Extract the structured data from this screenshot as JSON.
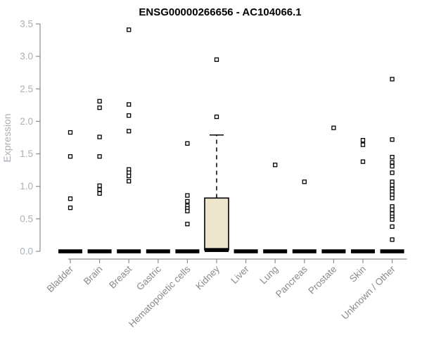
{
  "chart_data": {
    "type": "boxplot",
    "title": "ENSG00000266656 - AC104066.1",
    "ylabel": "Expression",
    "xlabel": "",
    "ylim": [
      0.0,
      3.5
    ],
    "yticks": [
      0.0,
      0.5,
      1.0,
      1.5,
      2.0,
      2.5,
      3.0,
      3.5
    ],
    "categories": [
      "Bladder",
      "Brain",
      "Breast",
      "Gastric",
      "Hematopoietic cells",
      "Kidney",
      "Liver",
      "Lung",
      "Pancreas",
      "Prostate",
      "Skin",
      "Unknown / Other"
    ],
    "boxes": [
      {
        "category": "Bladder",
        "median": 0.0,
        "q1": 0.0,
        "q3": 0.0,
        "whisker_low": 0.0,
        "whisker_high": 0.0,
        "outliers": [
          1.83,
          1.46,
          0.81,
          0.67
        ]
      },
      {
        "category": "Brain",
        "median": 0.0,
        "q1": 0.0,
        "q3": 0.0,
        "whisker_low": 0.0,
        "whisker_high": 0.0,
        "outliers": [
          2.31,
          2.21,
          1.76,
          1.46,
          1.01,
          0.95,
          0.89
        ]
      },
      {
        "category": "Breast",
        "median": 0.0,
        "q1": 0.0,
        "q3": 0.0,
        "whisker_low": 0.0,
        "whisker_high": 0.0,
        "outliers": [
          3.41,
          2.26,
          2.09,
          1.85,
          1.26,
          1.21,
          1.16,
          1.08
        ]
      },
      {
        "category": "Gastric",
        "median": 0.0,
        "q1": 0.0,
        "q3": 0.0,
        "whisker_low": 0.0,
        "whisker_high": 0.0,
        "outliers": []
      },
      {
        "category": "Hematopoietic cells",
        "median": 0.0,
        "q1": 0.0,
        "q3": 0.0,
        "whisker_low": 0.0,
        "whisker_high": 0.0,
        "outliers": [
          1.66,
          0.86,
          0.77,
          0.7,
          0.66,
          0.62,
          0.42
        ]
      },
      {
        "category": "Kidney",
        "median": 0.02,
        "q1": 0.02,
        "q3": 0.82,
        "whisker_low": 0.02,
        "whisker_high": 1.79,
        "outliers": [
          2.95,
          2.07
        ]
      },
      {
        "category": "Liver",
        "median": 0.0,
        "q1": 0.0,
        "q3": 0.0,
        "whisker_low": 0.0,
        "whisker_high": 0.0,
        "outliers": []
      },
      {
        "category": "Lung",
        "median": 0.0,
        "q1": 0.0,
        "q3": 0.0,
        "whisker_low": 0.0,
        "whisker_high": 0.0,
        "outliers": [
          1.33
        ]
      },
      {
        "category": "Pancreas",
        "median": 0.0,
        "q1": 0.0,
        "q3": 0.0,
        "whisker_low": 0.0,
        "whisker_high": 0.0,
        "outliers": [
          1.07
        ]
      },
      {
        "category": "Prostate",
        "median": 0.0,
        "q1": 0.0,
        "q3": 0.0,
        "whisker_low": 0.0,
        "whisker_high": 0.0,
        "outliers": [
          1.9
        ]
      },
      {
        "category": "Skin",
        "median": 0.0,
        "q1": 0.0,
        "q3": 0.0,
        "whisker_low": 0.0,
        "whisker_high": 0.0,
        "outliers": [
          1.71,
          1.64,
          1.38
        ]
      },
      {
        "category": "Unknown / Other",
        "median": 0.0,
        "q1": 0.0,
        "q3": 0.0,
        "whisker_low": 0.0,
        "whisker_high": 0.0,
        "outliers": [
          2.65,
          1.72,
          1.45,
          1.37,
          1.31,
          1.21,
          1.07,
          1.02,
          0.96,
          0.92,
          0.87,
          0.82,
          0.69,
          0.64,
          0.58,
          0.53,
          0.49,
          0.38,
          0.18
        ]
      }
    ],
    "layout": {
      "grid": false,
      "legend": "none",
      "outlier_marker": "open-square",
      "x_label_rotation_deg": 45
    },
    "colors": {
      "box_fill": "#EDE6CC",
      "box_stroke": "#000000",
      "median": "#000000",
      "axis": "#8C8C8C",
      "y_tick_label": "#A9B0B6",
      "x_tick_label": "#8A8A8A",
      "title": "#000000",
      "outlier_stroke": "#000000",
      "outlier_fill": "#FFFFFF"
    }
  }
}
